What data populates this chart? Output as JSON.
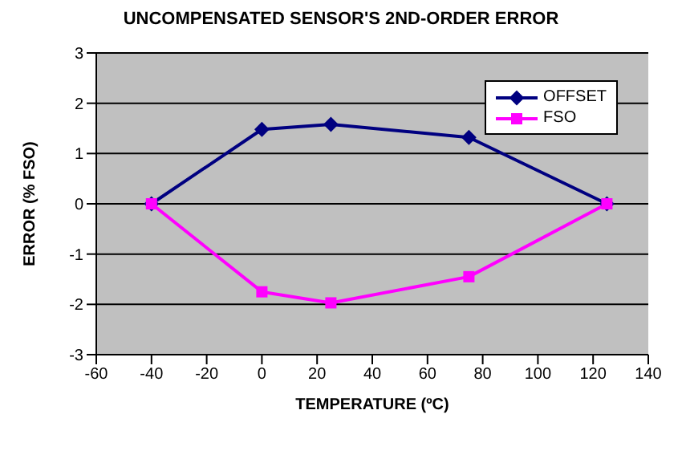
{
  "chart_data": {
    "type": "line",
    "title": "UNCOMPENSATED SENSOR'S 2ND-ORDER ERROR",
    "xlabel": "TEMPERATURE (ºC)",
    "ylabel": "ERROR (% FSO)",
    "series": [
      {
        "name": "OFFSET",
        "color": "#000080",
        "marker": "diamond",
        "x": [
          -40,
          0,
          25,
          75,
          125
        ],
        "values": [
          0,
          1.48,
          1.58,
          1.32,
          0
        ]
      },
      {
        "name": "FSO",
        "color": "#ff00ff",
        "marker": "square",
        "x": [
          -40,
          0,
          25,
          75,
          125
        ],
        "values": [
          0,
          -1.75,
          -1.97,
          -1.45,
          0
        ]
      }
    ],
    "xlim": [
      -60,
      140
    ],
    "xticks": [
      -60,
      -40,
      -20,
      0,
      20,
      40,
      60,
      80,
      100,
      120,
      140
    ],
    "ylim": [
      -3,
      3
    ],
    "yticks": [
      -3,
      -2,
      -1,
      0,
      1,
      2,
      3
    ],
    "grid": "y",
    "legend": "top right",
    "line_style": "solid"
  }
}
